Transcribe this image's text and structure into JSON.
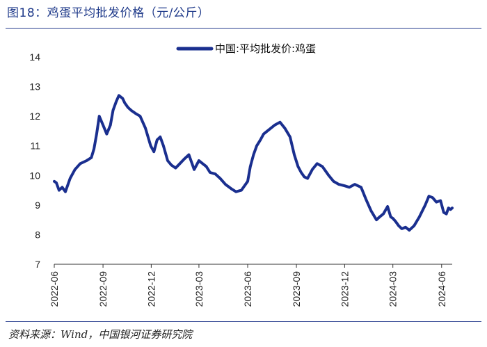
{
  "figure_title": "图18：鸡蛋平均批发价格（元/公斤）",
  "source_note": "资料来源：Wind，中国银河证券研究院",
  "colors": {
    "series": "#1a2f8f",
    "title": "#1f3a8a",
    "rule": "#2a3f8f"
  },
  "chart_data": {
    "type": "line",
    "title": "",
    "xlabel": "",
    "ylabel": "",
    "ylim": [
      7,
      14
    ],
    "yticks": [
      7,
      8,
      9,
      10,
      11,
      12,
      13,
      14
    ],
    "xlim": [
      "2022-06-01",
      "2024-06-21"
    ],
    "xticks": [
      "2022-06",
      "2022-09",
      "2022-12",
      "2023-03",
      "2023-06",
      "2023-09",
      "2023-12",
      "2024-03",
      "2024-06"
    ],
    "grid": false,
    "legend": "top-center",
    "series": [
      {
        "name": "中国:平均批发价:鸡蛋",
        "x": [
          "2022-06-01",
          "2022-06-05",
          "2022-06-10",
          "2022-06-16",
          "2022-06-22",
          "2022-07-01",
          "2022-07-10",
          "2022-07-20",
          "2022-08-01",
          "2022-08-10",
          "2022-08-15",
          "2022-08-20",
          "2022-08-25",
          "2022-09-01",
          "2022-09-08",
          "2022-09-15",
          "2022-09-20",
          "2022-09-26",
          "2022-10-01",
          "2022-10-08",
          "2022-10-12",
          "2022-10-18",
          "2022-10-24",
          "2022-11-01",
          "2022-11-10",
          "2022-11-20",
          "2022-11-30",
          "2022-12-06",
          "2022-12-12",
          "2022-12-18",
          "2022-12-24",
          "2023-01-01",
          "2023-01-08",
          "2023-01-16",
          "2023-01-24",
          "2023-02-01",
          "2023-02-10",
          "2023-02-20",
          "2023-03-01",
          "2023-03-08",
          "2023-03-15",
          "2023-03-22",
          "2023-04-01",
          "2023-04-10",
          "2023-04-20",
          "2023-05-01",
          "2023-05-10",
          "2023-05-20",
          "2023-06-01",
          "2023-06-06",
          "2023-06-12",
          "2023-06-18",
          "2023-06-25",
          "2023-07-01",
          "2023-07-08",
          "2023-07-15",
          "2023-07-22",
          "2023-08-01",
          "2023-08-10",
          "2023-08-20",
          "2023-08-28",
          "2023-09-04",
          "2023-09-10",
          "2023-09-16",
          "2023-09-22",
          "2023-10-01",
          "2023-10-10",
          "2023-10-20",
          "2023-11-01",
          "2023-11-10",
          "2023-11-20",
          "2023-12-01",
          "2023-12-10",
          "2023-12-20",
          "2024-01-01",
          "2024-01-10",
          "2024-01-20",
          "2024-01-30",
          "2024-02-05",
          "2024-02-12",
          "2024-02-20",
          "2024-02-26",
          "2024-03-01",
          "2024-03-06",
          "2024-03-12",
          "2024-03-18",
          "2024-03-25",
          "2024-04-01",
          "2024-04-10",
          "2024-04-20",
          "2024-05-01",
          "2024-05-08",
          "2024-05-15",
          "2024-05-22",
          "2024-05-30",
          "2024-06-05",
          "2024-06-10",
          "2024-06-14",
          "2024-06-18",
          "2024-06-21"
        ],
        "values": [
          9.8,
          9.75,
          9.5,
          9.6,
          9.45,
          9.9,
          10.2,
          10.4,
          10.5,
          10.6,
          10.9,
          11.4,
          12.0,
          11.7,
          11.4,
          11.7,
          12.2,
          12.5,
          12.7,
          12.6,
          12.45,
          12.3,
          12.2,
          12.1,
          12.0,
          11.6,
          11.0,
          10.8,
          11.2,
          11.3,
          11.0,
          10.5,
          10.35,
          10.25,
          10.4,
          10.55,
          10.7,
          10.2,
          10.5,
          10.4,
          10.3,
          10.1,
          10.05,
          9.9,
          9.7,
          9.55,
          9.45,
          9.5,
          9.8,
          10.3,
          10.7,
          11.0,
          11.2,
          11.4,
          11.5,
          11.6,
          11.7,
          11.8,
          11.6,
          11.3,
          10.7,
          10.3,
          10.1,
          9.95,
          9.9,
          10.2,
          10.4,
          10.3,
          10.0,
          9.8,
          9.7,
          9.65,
          9.6,
          9.7,
          9.6,
          9.2,
          8.8,
          8.5,
          8.6,
          8.7,
          8.95,
          8.6,
          8.55,
          8.45,
          8.3,
          8.2,
          8.25,
          8.15,
          8.3,
          8.6,
          9.0,
          9.3,
          9.25,
          9.1,
          9.15,
          8.75,
          8.7,
          8.9,
          8.85,
          8.9
        ]
      }
    ]
  }
}
